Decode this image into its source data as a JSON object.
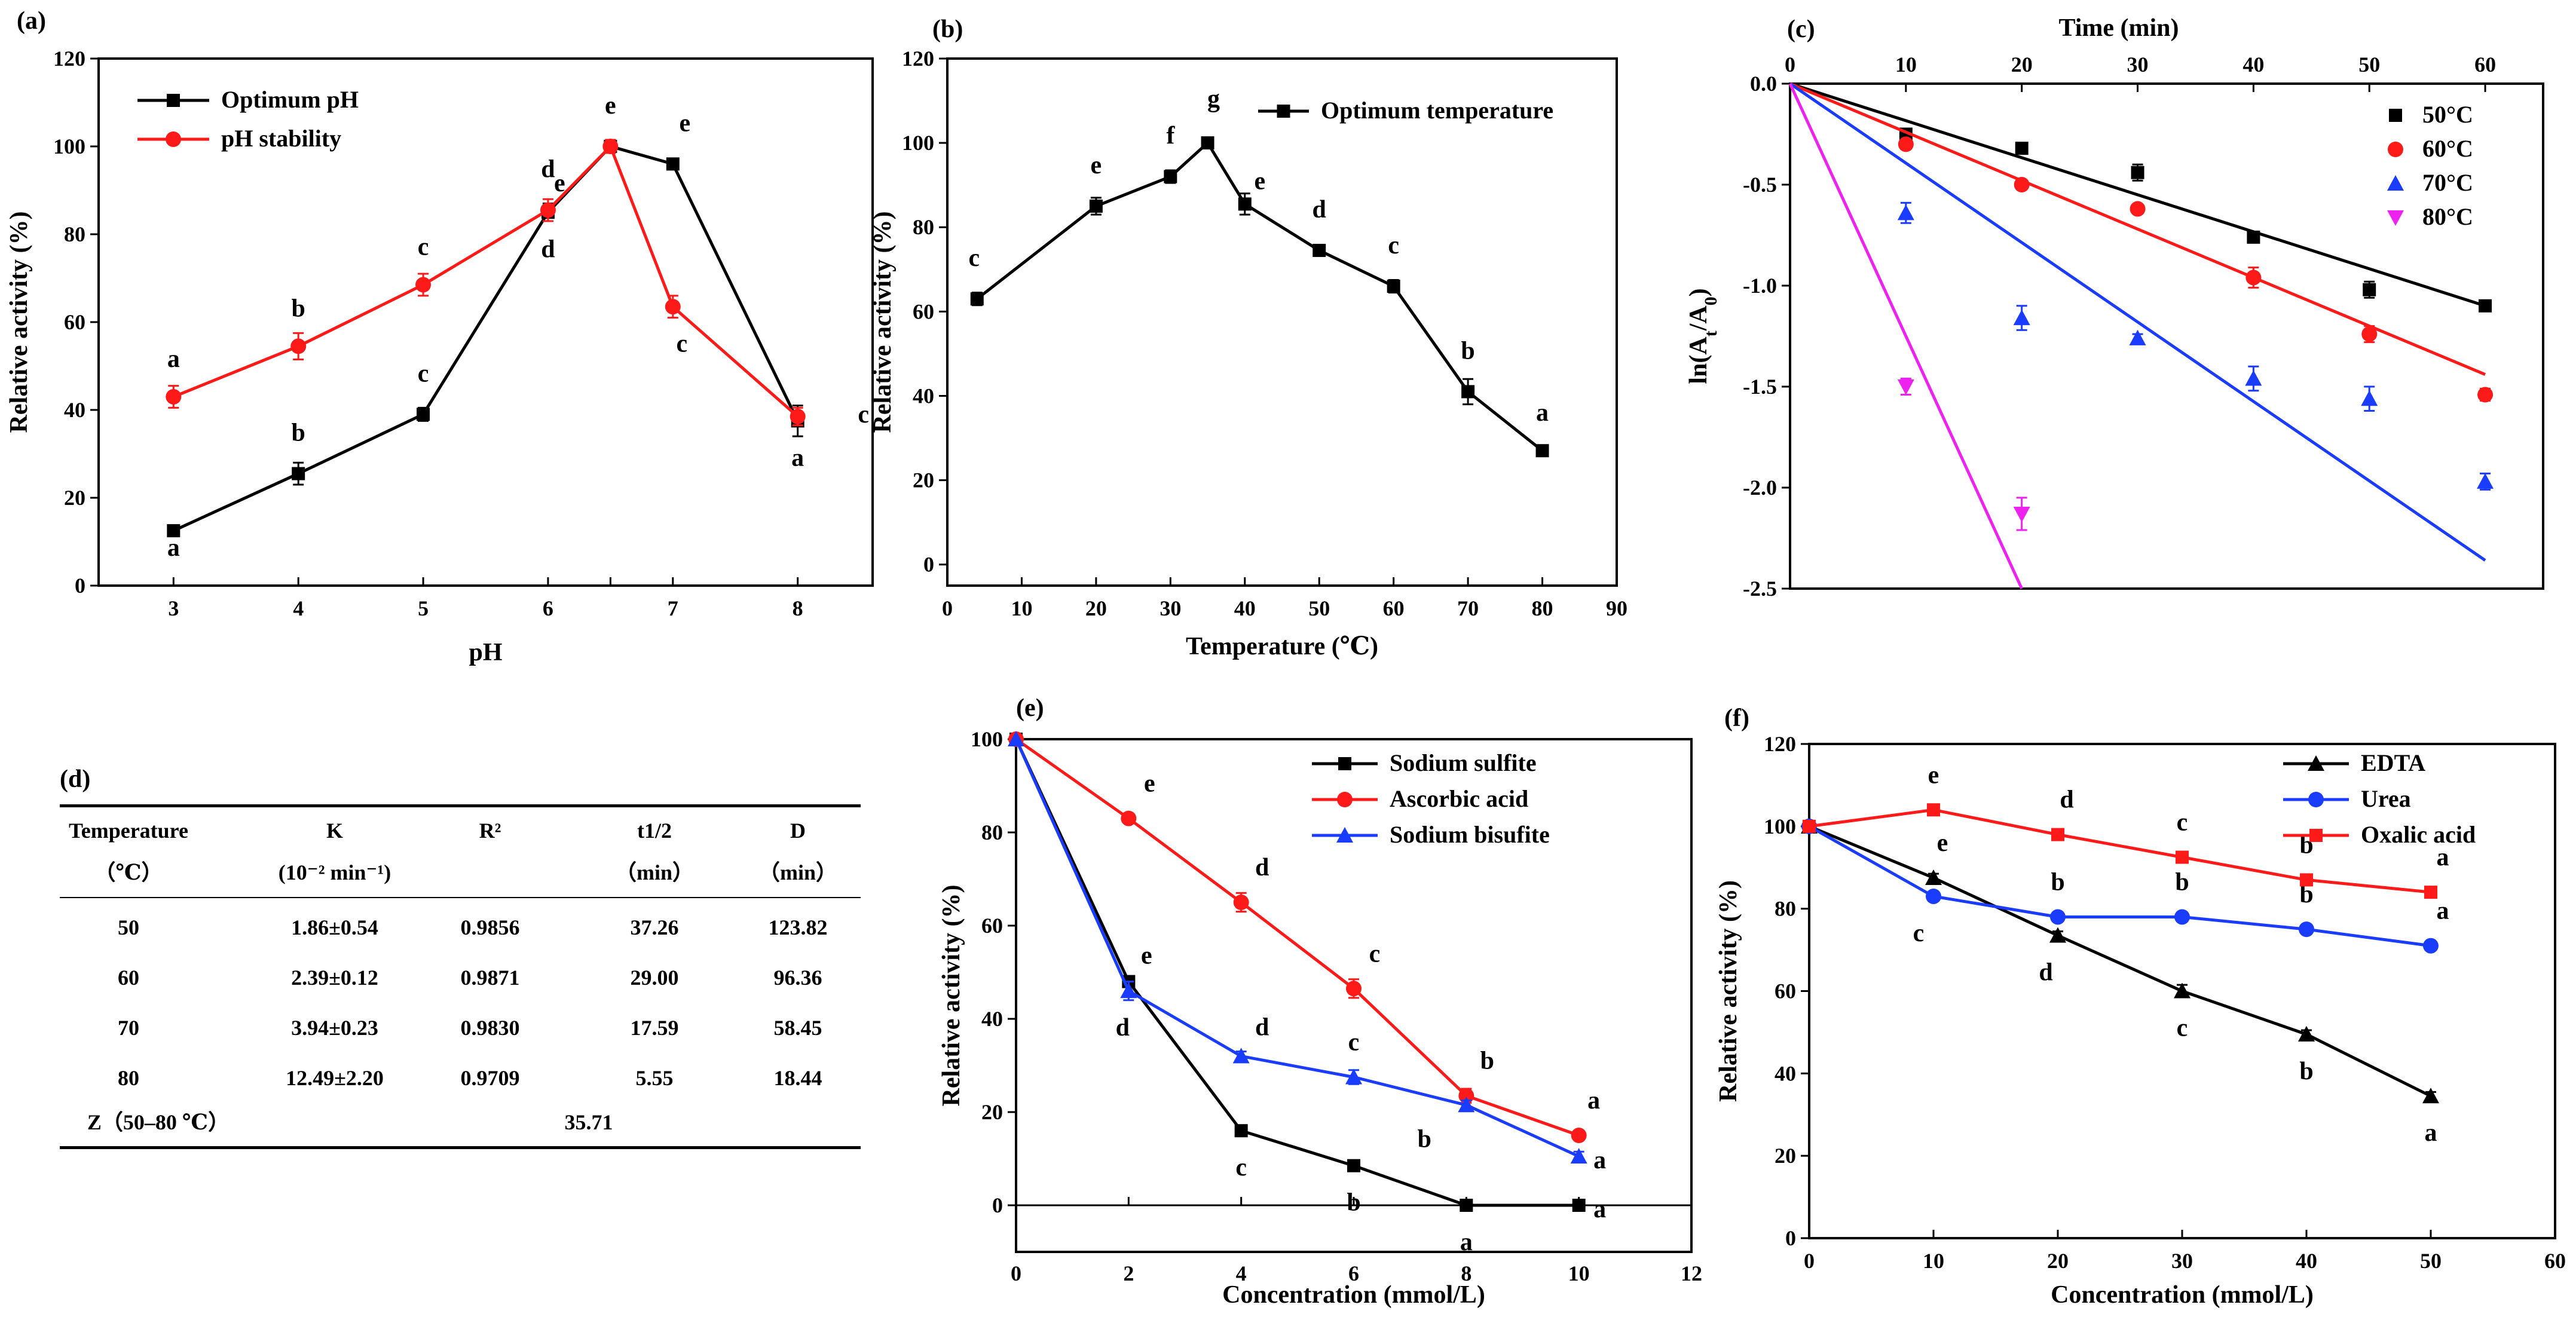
{
  "panels": {
    "a": {
      "label": "(a)",
      "chart_data": {
        "type": "line",
        "xlabel": "pH",
        "ylabel": "Relative activity (%)",
        "xlim": [
          2.4,
          8.6
        ],
        "ylim": [
          0,
          120
        ],
        "xticks": [
          3,
          4,
          5,
          6,
          6.5,
          7,
          8
        ],
        "xtick_labels": [
          "3",
          "4",
          "5",
          "6",
          "",
          "7",
          "8"
        ],
        "yticks": [
          0,
          20,
          40,
          60,
          80,
          100,
          120
        ],
        "legend_position": "top-left",
        "series": [
          {
            "name": "Optimum pH",
            "color": "#000000",
            "marker": "square",
            "x": [
              3,
              4,
              5,
              6,
              6.5,
              7,
              8
            ],
            "y": [
              12.5,
              25.5,
              39,
              85,
              100,
              96,
              37.5
            ],
            "err": [
              1,
              2.5,
              1.5,
              2,
              1.5,
              1,
              3.5
            ],
            "letters": [
              "a",
              "b",
              "c",
              "d",
              "e",
              "e",
              "a"
            ]
          },
          {
            "name": "pH stability",
            "color": "#ff1a1a",
            "marker": "circle",
            "x": [
              3,
              4,
              5,
              6,
              6.5,
              7,
              8
            ],
            "y": [
              43,
              54.5,
              68.5,
              85.5,
              100,
              63.5,
              38.5
            ],
            "err": [
              2.5,
              3,
              2.5,
              2.5,
              1.5,
              2.5,
              2
            ],
            "letters": [
              "a",
              "b",
              "c",
              "d",
              "e",
              "c",
              "c"
            ]
          }
        ]
      }
    },
    "b": {
      "label": "(b)",
      "chart_data": {
        "type": "line",
        "xlabel": "Temperature (℃)",
        "ylabel": "Relative activity (%)",
        "xlim": [
          0,
          90
        ],
        "ylim": [
          -5,
          120
        ],
        "xticks": [
          0,
          10,
          20,
          30,
          40,
          50,
          60,
          70,
          80,
          90
        ],
        "yticks": [
          0,
          20,
          40,
          60,
          80,
          100,
          120
        ],
        "legend_position": "top-right",
        "series": [
          {
            "name": "Optimum temperature",
            "color": "#000000",
            "marker": "square",
            "x": [
              4,
              20,
              30,
              35,
              40,
              50,
              60,
              70,
              80
            ],
            "y": [
              63,
              85,
              92,
              100,
              85.5,
              74.5,
              66,
              41,
              27
            ],
            "err": [
              1.5,
              2,
              1.5,
              1,
              2.5,
              1,
              1.5,
              3,
              1
            ],
            "letters": [
              "c",
              "e",
              "f",
              "g",
              "e",
              "d",
              "c",
              "b",
              "a"
            ]
          }
        ]
      }
    },
    "c": {
      "label": "(c)",
      "chart_data": {
        "type": "scatter",
        "title": "Time (min)",
        "xlabel": "Time (min)",
        "ylabel": "ln(At/A0)",
        "xlim": [
          0,
          65
        ],
        "ylim": [
          -2.5,
          0
        ],
        "xticks": [
          0,
          10,
          20,
          30,
          40,
          50,
          60
        ],
        "yticks": [
          0,
          -0.5,
          -1.0,
          -1.5,
          -2.0,
          -2.5
        ],
        "ytick_labels": [
          "0.0",
          "-0.5",
          "-1.0",
          "-1.5",
          "-2.0",
          "-2.5"
        ],
        "legend_position": "top-right",
        "series": [
          {
            "name": "50°C",
            "color": "#000000",
            "marker": "square",
            "x": [
              10,
              20,
              30,
              40,
              50,
              60
            ],
            "y": [
              -0.25,
              -0.32,
              -0.44,
              -0.76,
              -1.02,
              -1.1
            ],
            "err": [
              0.02,
              0.02,
              0.04,
              0.02,
              0.04,
              0.02
            ],
            "fit": [
              [
                0,
                0
              ],
              [
                60,
                -1.1
              ]
            ]
          },
          {
            "name": "60°C",
            "color": "#ff1a1a",
            "marker": "circle",
            "x": [
              10,
              20,
              30,
              40,
              50,
              60
            ],
            "y": [
              -0.3,
              -0.5,
              -0.62,
              -0.96,
              -1.24,
              -1.54
            ],
            "err": [
              0.02,
              0.02,
              0.02,
              0.05,
              0.04,
              0.03
            ],
            "fit": [
              [
                0,
                0
              ],
              [
                60,
                -1.44
              ]
            ]
          },
          {
            "name": "70°C",
            "color": "#1a3cff",
            "marker": "triangle-up",
            "x": [
              10,
              20,
              30,
              40,
              50,
              60
            ],
            "y": [
              -0.64,
              -1.16,
              -1.26,
              -1.46,
              -1.56,
              -1.97
            ],
            "err": [
              0.05,
              0.06,
              0.02,
              0.06,
              0.06,
              0.04
            ],
            "fit": [
              [
                0,
                0
              ],
              [
                60,
                -2.36
              ]
            ]
          },
          {
            "name": "80°C",
            "color": "#ee22ee",
            "marker": "triangle-down",
            "x": [
              10,
              20
            ],
            "y": [
              -1.5,
              -2.13
            ],
            "err": [
              0.04,
              0.08
            ],
            "fit": [
              [
                0,
                0
              ],
              [
                20,
                -2.5
              ]
            ]
          }
        ]
      }
    },
    "d": {
      "label": "(d)",
      "table": {
        "headers_line1": [
          "Temperature",
          "K",
          "R²",
          "t1/2",
          "D"
        ],
        "headers_line2": [
          "（℃）",
          "(10⁻² min⁻¹)",
          "",
          "（min）",
          "（min）"
        ],
        "rows": [
          [
            "50",
            "1.86±0.54",
            "0.9856",
            "37.26",
            "123.82"
          ],
          [
            "60",
            "2.39±0.12",
            "0.9871",
            "29.00",
            "96.36"
          ],
          [
            "70",
            "3.94±0.23",
            "0.9830",
            "17.59",
            "58.45"
          ],
          [
            "80",
            "12.49±2.20",
            "0.9709",
            "5.55",
            "18.44"
          ]
        ],
        "z_label": "Z（50–80 ℃）",
        "z_value": "35.71"
      }
    },
    "e": {
      "label": "(e)",
      "chart_data": {
        "type": "line",
        "xlabel": "Concentration (mmol/L)",
        "ylabel": "Relative activity (%)",
        "xlim": [
          0,
          12
        ],
        "ylim": [
          -10,
          100
        ],
        "xticks": [
          0,
          2,
          4,
          6,
          8,
          10,
          12
        ],
        "yticks": [
          0,
          20,
          40,
          60,
          80,
          100
        ],
        "legend_position": "top-right",
        "series": [
          {
            "name": "Sodium sulfite",
            "color": "#000000",
            "marker": "square",
            "x": [
              0,
              2,
              4,
              6,
              8,
              10
            ],
            "y": [
              100,
              48,
              16,
              8.5,
              0,
              0
            ],
            "err": [
              0,
              1,
              1,
              1,
              0.5,
              0.5
            ],
            "letters": [
              "",
              "e",
              "c",
              "b",
              "a",
              "a"
            ]
          },
          {
            "name": "Ascorbic acid",
            "color": "#ff1a1a",
            "marker": "circle",
            "x": [
              0,
              2,
              4,
              6,
              8,
              10
            ],
            "y": [
              100,
              83,
              65,
              46.5,
              23.5,
              15
            ],
            "err": [
              0,
              1,
              2,
              2,
              1.5,
              1
            ],
            "letters": [
              "",
              "e",
              "d",
              "c",
              "b",
              "a"
            ]
          },
          {
            "name": "Sodium bisufite",
            "color": "#1a3cff",
            "marker": "triangle-up",
            "x": [
              0,
              2,
              4,
              6,
              8,
              10
            ],
            "y": [
              100,
              46,
              32,
              27.5,
              21.5,
              10.5
            ],
            "err": [
              0,
              2,
              1,
              1.5,
              1,
              1
            ],
            "letters": [
              "",
              "d",
              "d",
              "c",
              "b",
              "a"
            ]
          }
        ]
      }
    },
    "f": {
      "label": "(f)",
      "chart_data": {
        "type": "line",
        "xlabel": "Concentration (mmol/L)",
        "ylabel": "Relative activity (%)",
        "xlim": [
          0,
          60
        ],
        "ylim": [
          0,
          120
        ],
        "xticks": [
          0,
          10,
          20,
          30,
          40,
          50,
          60
        ],
        "yticks": [
          0,
          20,
          40,
          60,
          80,
          100,
          120
        ],
        "legend_position": "top-right",
        "series": [
          {
            "name": "EDTA",
            "color": "#000000",
            "marker": "triangle-up",
            "x": [
              0,
              10,
              20,
              30,
              40,
              50
            ],
            "y": [
              100,
              87.5,
              73.5,
              60,
              49.5,
              34.5
            ],
            "err": [
              0,
              1,
              1,
              1.5,
              1,
              1
            ],
            "letters": [
              "",
              "e",
              "d",
              "c",
              "b",
              "a"
            ]
          },
          {
            "name": "Urea",
            "color": "#1a3cff",
            "marker": "circle",
            "x": [
              0,
              10,
              20,
              30,
              40,
              50
            ],
            "y": [
              100,
              83,
              78,
              78,
              75,
              71
            ],
            "err": [
              0,
              1,
              1,
              1,
              1,
              1
            ],
            "letters": [
              "",
              "c",
              "b",
              "b",
              "b",
              "a"
            ]
          },
          {
            "name": "Oxalic acid",
            "color": "#ff1a1a",
            "marker": "square",
            "x": [
              0,
              10,
              20,
              30,
              40,
              50
            ],
            "y": [
              100,
              104,
              98,
              92.5,
              87,
              84
            ],
            "err": [
              0,
              1,
              1,
              1,
              1,
              1
            ],
            "letters": [
              "",
              "e",
              "d",
              "c",
              "b",
              "a"
            ]
          }
        ]
      }
    }
  }
}
